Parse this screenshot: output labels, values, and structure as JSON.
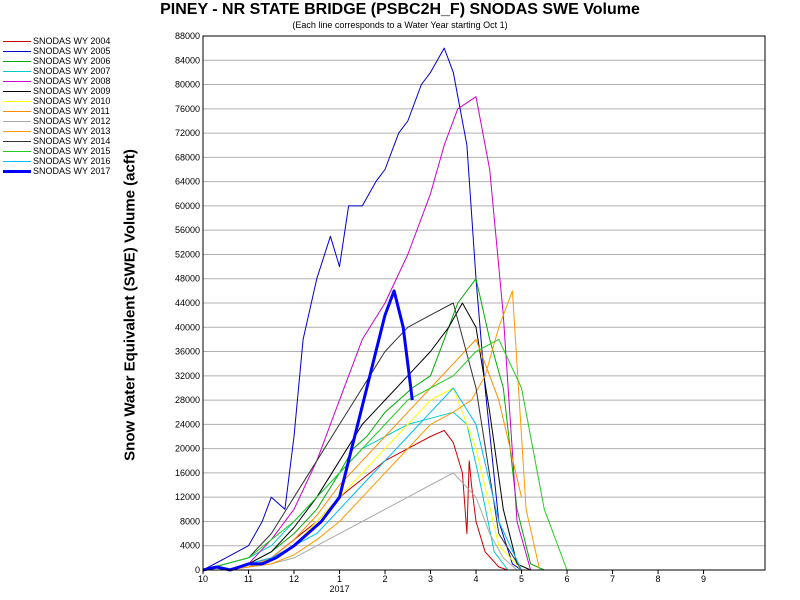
{
  "chart_data": {
    "type": "line",
    "title": "PINEY - NR STATE BRIDGE (PSBC2H_F) SNODAS SWE Volume",
    "subtitle": "(Each line corresponds to a Water Year starting Oct 1)",
    "ylabel": "Snow Water Equivalent (SWE) Volume (acft)",
    "xlabel": "",
    "x_tick_labels": [
      "10",
      "11",
      "12",
      "1",
      "2",
      "3",
      "4",
      "5",
      "6",
      "7",
      "8",
      "9"
    ],
    "x_year_label": "2017",
    "x_tick_months": [
      0,
      1,
      2,
      3,
      4,
      5,
      6,
      7,
      8,
      9,
      10,
      11
    ],
    "xlim_months": [
      0,
      12.35
    ],
    "ylim": [
      0,
      88000
    ],
    "y_ticks": [
      0,
      4000,
      8000,
      12000,
      16000,
      20000,
      24000,
      28000,
      32000,
      36000,
      40000,
      44000,
      48000,
      52000,
      56000,
      60000,
      64000,
      68000,
      72000,
      76000,
      80000,
      84000,
      88000
    ],
    "grid": true,
    "legend_position": "left",
    "x_unit_note": "x values are months since Oct 1 (10=0, 11=1, 12=2, 1=3, ...)",
    "series": [
      {
        "name": "SNODAS WY 2004",
        "color": "#cc0000",
        "width": 1,
        "x": [
          0,
          0.5,
          1,
          1.5,
          2,
          2.5,
          3,
          3.5,
          4,
          4.5,
          5,
          5.3,
          5.5,
          5.7,
          5.8,
          5.85,
          5.9,
          6.0,
          6.2,
          6.5,
          6.7,
          6.9
        ],
        "y": [
          0,
          0,
          1000,
          2000,
          5000,
          8000,
          12000,
          15000,
          18000,
          20000,
          22000,
          23000,
          21000,
          16000,
          6000,
          18000,
          14000,
          8000,
          3000,
          500,
          0,
          0
        ]
      },
      {
        "name": "SNODAS WY 2005",
        "color": "#0000cc",
        "width": 1,
        "x": [
          0,
          0.5,
          1,
          1.3,
          1.5,
          1.8,
          2,
          2.2,
          2.5,
          2.8,
          3,
          3.2,
          3.5,
          3.8,
          4,
          4.3,
          4.5,
          4.8,
          5,
          5.3,
          5.5,
          5.8,
          6,
          6.2,
          6.5,
          6.8,
          7
        ],
        "y": [
          0,
          2000,
          4000,
          8000,
          12000,
          10000,
          22000,
          38000,
          48000,
          55000,
          50000,
          60000,
          60000,
          64000,
          66000,
          72000,
          74000,
          80000,
          82000,
          86000,
          82000,
          70000,
          48000,
          30000,
          8000,
          1000,
          0
        ]
      },
      {
        "name": "SNODAS WY 2006",
        "color": "#00aa00",
        "width": 1,
        "x": [
          0,
          0.5,
          1,
          1.5,
          2,
          2.5,
          3,
          3.3,
          3.6,
          4,
          4.3,
          4.6,
          5,
          5.3,
          5.6,
          6,
          6.3,
          6.6,
          6.9,
          7.2,
          7.5
        ],
        "y": [
          0,
          0,
          1000,
          3000,
          6000,
          10000,
          16000,
          20000,
          22000,
          26000,
          28000,
          30000,
          32000,
          38000,
          44000,
          48000,
          38000,
          30000,
          10000,
          1000,
          0
        ]
      },
      {
        "name": "SNODAS WY 2007",
        "color": "#00cccc",
        "width": 1,
        "x": [
          0,
          0.5,
          1,
          1.5,
          2,
          2.5,
          3,
          3.5,
          4,
          4.5,
          5,
          5.5,
          5.8,
          6.1,
          6.4,
          6.7
        ],
        "y": [
          0,
          1000,
          2000,
          4000,
          8000,
          12000,
          16000,
          20000,
          22000,
          24000,
          25000,
          26000,
          24000,
          14000,
          3000,
          0
        ]
      },
      {
        "name": "SNODAS WY 2008",
        "color": "#cc00cc",
        "width": 1,
        "x": [
          0,
          0.5,
          1,
          1.5,
          2,
          2.5,
          3,
          3.5,
          4,
          4.5,
          5,
          5.3,
          5.6,
          6,
          6.3,
          6.6,
          6.9,
          7.2
        ],
        "y": [
          0,
          0,
          1000,
          5000,
          10000,
          18000,
          28000,
          38000,
          44000,
          52000,
          62000,
          70000,
          76000,
          78000,
          66000,
          42000,
          8000,
          0
        ]
      },
      {
        "name": "SNODAS WY 2009",
        "color": "#000000",
        "width": 1,
        "x": [
          0,
          0.5,
          1,
          1.5,
          2,
          2.5,
          3,
          3.5,
          4,
          4.5,
          5,
          5.4,
          5.7,
          6,
          6.3,
          6.6,
          6.9,
          7.2
        ],
        "y": [
          0,
          0,
          1000,
          3000,
          7000,
          12000,
          18000,
          24000,
          28000,
          32000,
          36000,
          40000,
          44000,
          40000,
          26000,
          10000,
          1000,
          0
        ]
      },
      {
        "name": "SNODAS WY 2010",
        "color": "#ffff00",
        "width": 1,
        "x": [
          0,
          0.5,
          1,
          1.5,
          2,
          2.5,
          3,
          3.5,
          4,
          4.5,
          5,
          5.5,
          6,
          6.5,
          7
        ],
        "y": [
          0,
          0,
          500,
          1500,
          4000,
          8000,
          12000,
          16000,
          20000,
          24000,
          28000,
          30000,
          20000,
          4000,
          0
        ]
      },
      {
        "name": "SNODAS WY 2011",
        "color": "#ff8c00",
        "width": 1,
        "x": [
          0,
          0.5,
          1,
          1.5,
          2,
          2.5,
          3,
          3.5,
          4,
          4.5,
          5,
          5.5,
          6,
          6.5,
          7
        ],
        "y": [
          0,
          0,
          500,
          2000,
          5000,
          9000,
          14000,
          18000,
          22000,
          26000,
          30000,
          34000,
          38000,
          28000,
          12000
        ]
      },
      {
        "name": "SNODAS WY 2012",
        "color": "#aaaaaa",
        "width": 1,
        "x": [
          0,
          0.5,
          1,
          1.5,
          2,
          2.5,
          3,
          3.5,
          4,
          4.5,
          5,
          5.5,
          6,
          6.3,
          6.6,
          6.9
        ],
        "y": [
          0,
          0,
          500,
          1000,
          2000,
          4000,
          6000,
          8000,
          10000,
          12000,
          14000,
          16000,
          12000,
          6000,
          2000,
          0
        ]
      },
      {
        "name": "SNODAS WY 2013",
        "color": "#ff9900",
        "width": 1,
        "x": [
          0,
          0.5,
          1,
          1.5,
          2,
          2.5,
          3,
          3.5,
          4,
          4.5,
          5,
          5.5,
          5.9,
          6.2,
          6.5,
          6.8,
          7.1,
          7.4
        ],
        "y": [
          0,
          0,
          500,
          1000,
          2500,
          5000,
          8000,
          12000,
          16000,
          20000,
          24000,
          26000,
          28000,
          32000,
          40000,
          46000,
          10000,
          0
        ]
      },
      {
        "name": "SNODAS WY 2014",
        "color": "#333333",
        "width": 1,
        "x": [
          0,
          0.5,
          1,
          1.5,
          2,
          2.5,
          3,
          3.5,
          4,
          4.5,
          5,
          5.5,
          6,
          6.5,
          7
        ],
        "y": [
          0,
          1000,
          2000,
          6000,
          12000,
          18000,
          24000,
          30000,
          36000,
          40000,
          42000,
          44000,
          30000,
          6000,
          0
        ]
      },
      {
        "name": "SNODAS WY 2015",
        "color": "#22cc22",
        "width": 1,
        "x": [
          0,
          0.5,
          1,
          1.5,
          2,
          2.5,
          3,
          3.5,
          4,
          4.5,
          5,
          5.5,
          6,
          6.5,
          7,
          7.5,
          8
        ],
        "y": [
          0,
          1000,
          2000,
          5000,
          8000,
          12000,
          16000,
          20000,
          24000,
          28000,
          30000,
          32000,
          36000,
          38000,
          30000,
          10000,
          0
        ]
      },
      {
        "name": "SNODAS WY 2016",
        "color": "#00bbff",
        "width": 1,
        "x": [
          0,
          0.5,
          1,
          1.5,
          2,
          2.5,
          3,
          3.5,
          4,
          4.5,
          5,
          5.5,
          6,
          6.5,
          7
        ],
        "y": [
          0,
          0,
          1000,
          2000,
          4000,
          6000,
          10000,
          14000,
          18000,
          22000,
          26000,
          30000,
          24000,
          8000,
          0
        ]
      },
      {
        "name": "SNODAS WY 2017",
        "color": "#0000ff",
        "width": 3,
        "x": [
          0,
          0.3,
          0.6,
          1,
          1.3,
          1.6,
          2,
          2.3,
          2.6,
          3,
          3.2,
          3.4,
          3.6,
          3.8,
          4,
          4.2,
          4.4,
          4.6
        ],
        "y": [
          0,
          500,
          0,
          1000,
          1000,
          2000,
          4000,
          6000,
          8000,
          12000,
          18000,
          24000,
          30000,
          36000,
          42000,
          46000,
          40000,
          28000
        ]
      }
    ]
  }
}
